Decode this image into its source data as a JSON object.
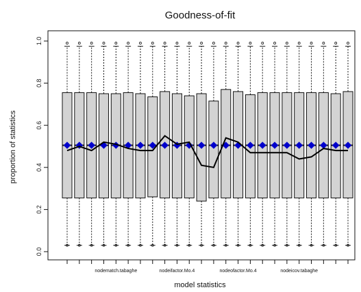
{
  "chart_data": {
    "type": "boxplot",
    "title": "Goodness-of-fit",
    "xlabel": "model statistics",
    "ylabel": "proportion of statistics",
    "ylim": [
      0,
      1
    ],
    "yticks": [
      0.0,
      0.2,
      0.4,
      0.6,
      0.8,
      1.0
    ],
    "ytick_labels": [
      "0.0",
      "0.2",
      "0.4",
      "0.6",
      "0.8",
      "1.0"
    ],
    "category_labels": [
      {
        "index": 4,
        "label": "nodematch.tabaghe"
      },
      {
        "index": 9,
        "label": "nodeifactor.Mo.4"
      },
      {
        "index": 14,
        "label": "nodeofactor.Mo.4"
      },
      {
        "index": 19,
        "label": "nodeicov.tabaghe"
      }
    ],
    "n_boxes": 24,
    "boxes": [
      {
        "q1": 0.255,
        "median": 0.505,
        "q3": 0.755,
        "whisker_low": 0.03,
        "whisker_high": 0.975,
        "out_low": 0.03,
        "out_high": 0.99
      },
      {
        "q1": 0.255,
        "median": 0.505,
        "q3": 0.755,
        "whisker_low": 0.03,
        "whisker_high": 0.975,
        "out_low": 0.03,
        "out_high": 0.99
      },
      {
        "q1": 0.255,
        "median": 0.505,
        "q3": 0.755,
        "whisker_low": 0.03,
        "whisker_high": 0.975,
        "out_low": 0.03,
        "out_high": 0.99
      },
      {
        "q1": 0.255,
        "median": 0.505,
        "q3": 0.75,
        "whisker_low": 0.03,
        "whisker_high": 0.975,
        "out_low": 0.03,
        "out_high": 0.99
      },
      {
        "q1": 0.255,
        "median": 0.505,
        "q3": 0.75,
        "whisker_low": 0.03,
        "whisker_high": 0.975,
        "out_low": 0.03,
        "out_high": 0.99
      },
      {
        "q1": 0.255,
        "median": 0.505,
        "q3": 0.755,
        "whisker_low": 0.03,
        "whisker_high": 0.975,
        "out_low": 0.03,
        "out_high": 0.99
      },
      {
        "q1": 0.255,
        "median": 0.505,
        "q3": 0.75,
        "whisker_low": 0.03,
        "whisker_high": 0.975,
        "out_low": 0.03,
        "out_high": 0.99
      },
      {
        "q1": 0.26,
        "median": 0.505,
        "q3": 0.735,
        "whisker_low": 0.03,
        "whisker_high": 0.975,
        "out_low": 0.03,
        "out_high": 0.99
      },
      {
        "q1": 0.255,
        "median": 0.505,
        "q3": 0.76,
        "whisker_low": 0.03,
        "whisker_high": 0.975,
        "out_low": 0.03,
        "out_high": 0.99
      },
      {
        "q1": 0.255,
        "median": 0.505,
        "q3": 0.75,
        "whisker_low": 0.03,
        "whisker_high": 0.975,
        "out_low": 0.03,
        "out_high": 0.99
      },
      {
        "q1": 0.255,
        "median": 0.505,
        "q3": 0.74,
        "whisker_low": 0.03,
        "whisker_high": 0.975,
        "out_low": 0.03,
        "out_high": 0.99
      },
      {
        "q1": 0.24,
        "median": 0.505,
        "q3": 0.75,
        "whisker_low": 0.03,
        "whisker_high": 0.975,
        "out_low": 0.03,
        "out_high": 0.99
      },
      {
        "q1": 0.255,
        "median": 0.505,
        "q3": 0.715,
        "whisker_low": 0.03,
        "whisker_high": 0.975,
        "out_low": 0.03,
        "out_high": 0.99
      },
      {
        "q1": 0.255,
        "median": 0.505,
        "q3": 0.77,
        "whisker_low": 0.03,
        "whisker_high": 0.975,
        "out_low": 0.03,
        "out_high": 0.99
      },
      {
        "q1": 0.255,
        "median": 0.505,
        "q3": 0.76,
        "whisker_low": 0.03,
        "whisker_high": 0.975,
        "out_low": 0.03,
        "out_high": 0.99
      },
      {
        "q1": 0.255,
        "median": 0.505,
        "q3": 0.745,
        "whisker_low": 0.03,
        "whisker_high": 0.975,
        "out_low": 0.03,
        "out_high": 0.99
      },
      {
        "q1": 0.255,
        "median": 0.505,
        "q3": 0.755,
        "whisker_low": 0.03,
        "whisker_high": 0.975,
        "out_low": 0.03,
        "out_high": 0.99
      },
      {
        "q1": 0.255,
        "median": 0.505,
        "q3": 0.755,
        "whisker_low": 0.03,
        "whisker_high": 0.975,
        "out_low": 0.03,
        "out_high": 0.99
      },
      {
        "q1": 0.255,
        "median": 0.505,
        "q3": 0.755,
        "whisker_low": 0.03,
        "whisker_high": 0.975,
        "out_low": 0.03,
        "out_high": 0.99
      },
      {
        "q1": 0.255,
        "median": 0.505,
        "q3": 0.755,
        "whisker_low": 0.03,
        "whisker_high": 0.975,
        "out_low": 0.03,
        "out_high": 0.99
      },
      {
        "q1": 0.255,
        "median": 0.505,
        "q3": 0.755,
        "whisker_low": 0.03,
        "whisker_high": 0.975,
        "out_low": 0.03,
        "out_high": 0.99
      },
      {
        "q1": 0.255,
        "median": 0.505,
        "q3": 0.755,
        "whisker_low": 0.03,
        "whisker_high": 0.975,
        "out_low": 0.03,
        "out_high": 0.99
      },
      {
        "q1": 0.255,
        "median": 0.505,
        "q3": 0.75,
        "whisker_low": 0.03,
        "whisker_high": 0.975,
        "out_low": 0.03,
        "out_high": 0.99
      },
      {
        "q1": 0.255,
        "median": 0.505,
        "q3": 0.76,
        "whisker_low": 0.03,
        "whisker_high": 0.975,
        "out_low": 0.03,
        "out_high": 0.99
      }
    ],
    "observed_line": [
      0.48,
      0.5,
      0.48,
      0.52,
      0.51,
      0.49,
      0.48,
      0.48,
      0.55,
      0.51,
      0.52,
      0.41,
      0.4,
      0.54,
      0.52,
      0.47,
      0.47,
      0.47,
      0.47,
      0.44,
      0.45,
      0.49,
      0.48,
      0.48
    ],
    "mean_points": [
      0.505,
      0.505,
      0.505,
      0.505,
      0.505,
      0.505,
      0.505,
      0.505,
      0.505,
      0.505,
      0.505,
      0.505,
      0.505,
      0.505,
      0.505,
      0.505,
      0.505,
      0.505,
      0.505,
      0.505,
      0.505,
      0.505,
      0.505,
      0.505
    ],
    "colors": {
      "box_fill": "#d3d3d3",
      "box_stroke": "#111111",
      "observed_line": "#000000",
      "mean_points": "#0000cc",
      "whisker": "#111111"
    },
    "grid": false
  }
}
